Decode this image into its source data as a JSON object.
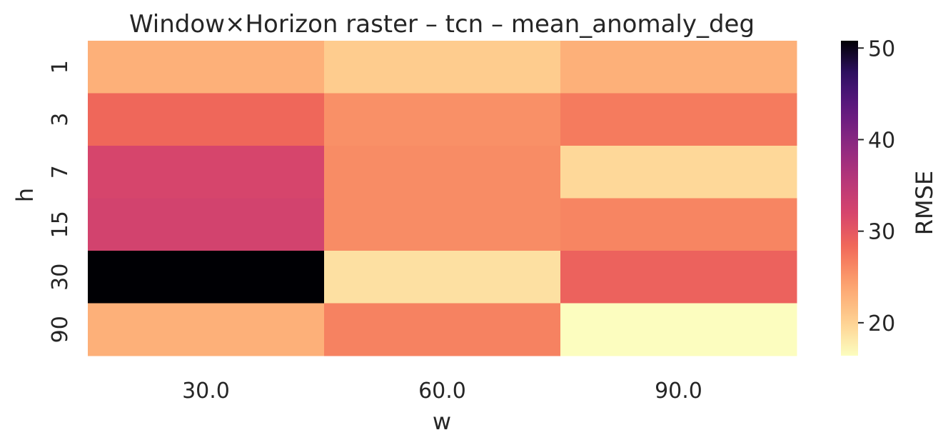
{
  "chart_data": {
    "type": "heatmap",
    "title": "Window×Horizon raster – tcn – mean_anomaly_deg",
    "xlabel": "w",
    "ylabel": "h",
    "x_categories": [
      "30.0",
      "60.0",
      "90.0"
    ],
    "y_categories": [
      "1",
      "3",
      "7",
      "15",
      "30",
      "90"
    ],
    "values": [
      [
        23.0,
        20.5,
        23.0
      ],
      [
        28.5,
        25.5,
        27.0
      ],
      [
        32.0,
        25.8,
        19.5
      ],
      [
        32.5,
        25.8,
        26.3
      ],
      [
        50.8,
        18.8,
        29.0
      ],
      [
        23.0,
        26.5,
        16.4
      ]
    ],
    "colormap": "magma_r",
    "colorbar": {
      "label": "RMSE",
      "range": [
        16.4,
        50.8
      ],
      "ticks": [
        "20",
        "30",
        "40",
        "50"
      ]
    }
  }
}
